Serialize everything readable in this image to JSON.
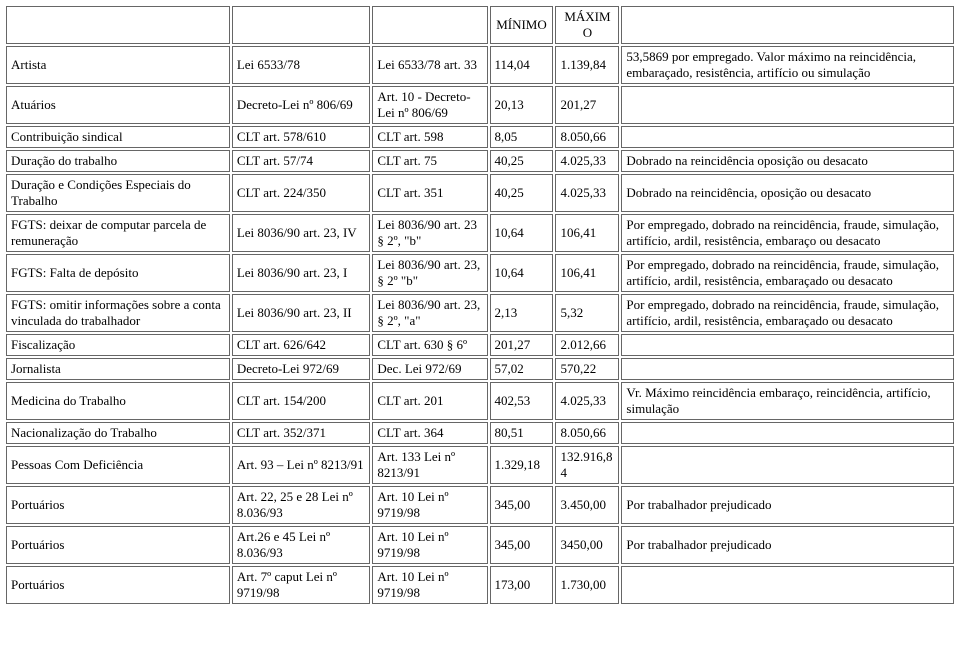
{
  "header": {
    "min": "MÍNIMO",
    "max": "MÁXIMO"
  },
  "rows": [
    {
      "c1": "Artista",
      "c2": "Lei 6533/78",
      "c3": "Lei 6533/78 art. 33",
      "c4": "114,04",
      "c5": "1.139,84",
      "c6": "53,5869 por empregado. Valor máximo na reincidência, embaraçado, resistência, artifício ou simulação"
    },
    {
      "c1": "Atuários",
      "c2": "Decreto-Lei nº 806/69",
      "c3": "Art. 10 - Decreto-Lei nº 806/69",
      "c4": "20,13",
      "c5": "201,27",
      "c6": ""
    },
    {
      "c1": "Contribuição sindical",
      "c2": "CLT art. 578/610",
      "c3": "CLT art. 598",
      "c4": "8,05",
      "c5": "8.050,66",
      "c6": ""
    },
    {
      "c1": "Duração do trabalho",
      "c2": "CLT art. 57/74",
      "c3": "CLT art. 75",
      "c4": "40,25",
      "c5": "4.025,33",
      "c6": "Dobrado na reincidência oposição ou desacato"
    },
    {
      "c1": "Duração e Condições Especiais do Trabalho",
      "c2": "CLT art. 224/350",
      "c3": "CLT art. 351",
      "c4": "40,25",
      "c5": "4.025,33",
      "c6": "Dobrado na reincidência, oposição ou desacato"
    },
    {
      "c1": "FGTS: deixar de computar parcela de remuneração",
      "c2": "Lei 8036/90 art. 23, IV",
      "c3": "Lei 8036/90 art. 23 § 2º, \"b\"",
      "c4": "10,64",
      "c5": "106,41",
      "c6": "Por empregado, dobrado na reincidência, fraude, simulação, artifício, ardil, resistência, embaraço ou desacato"
    },
    {
      "c1": "FGTS: Falta de depósito",
      "c2": "Lei 8036/90 art. 23, I",
      "c3": "Lei 8036/90 art. 23, § 2º \"b\"",
      "c4": "10,64",
      "c5": "106,41",
      "c6": "Por empregado, dobrado na reincidência, fraude, simulação, artifício, ardil, resistência, embaraçado ou desacato"
    },
    {
      "c1": "FGTS: omitir informações sobre a conta vinculada do trabalhador",
      "c2": "Lei 8036/90 art. 23, II",
      "c3": "Lei 8036/90 art. 23, § 2º, \"a\"",
      "c4": "2,13",
      "c5": "5,32",
      "c6": "Por empregado, dobrado na reincidência, fraude, simulação, artifício, ardil, resistência, embaraçado ou desacato"
    },
    {
      "c1": "Fiscalização",
      "c2": "CLT art. 626/642",
      "c3": "CLT art. 630 § 6º",
      "c4": "201,27",
      "c5": "2.012,66",
      "c6": ""
    },
    {
      "c1": "Jornalista",
      "c2": "Decreto-Lei 972/69",
      "c3": "Dec. Lei 972/69",
      "c4": "57,02",
      "c5": "570,22",
      "c6": ""
    },
    {
      "c1": "Medicina do Trabalho",
      "c2": "CLT art. 154/200",
      "c3": "CLT art. 201",
      "c4": "402,53",
      "c5": "4.025,33",
      "c6": "Vr. Máximo reincidência embaraço, reincidência, artifício, simulação"
    },
    {
      "c1": "Nacionalização do Trabalho",
      "c2": "CLT art. 352/371",
      "c3": "CLT art. 364",
      "c4": "80,51",
      "c5": "8.050,66",
      "c6": ""
    },
    {
      "c1": "Pessoas Com Deficiência",
      "c2": "Art. 93 – Lei nº 8213/91",
      "c3": "Art. 133 Lei nº 8213/91",
      "c4": "1.329,18",
      "c5": "132.916,84",
      "c6": ""
    },
    {
      "c1": "Portuários",
      "c2": "Art. 22, 25 e 28 Lei nº 8.036/93",
      "c3": "Art. 10 Lei nº 9719/98",
      "c4": "345,00",
      "c5": "3.450,00",
      "c6": "Por trabalhador prejudicado"
    },
    {
      "c1": "Portuários",
      "c2": "Art.26 e 45 Lei nº 8.036/93",
      "c3": "Art. 10 Lei nº 9719/98",
      "c4": "345,00",
      "c5": "3450,00",
      "c6": "Por trabalhador prejudicado"
    },
    {
      "c1": "Portuários",
      "c2": "Art. 7º caput Lei nº 9719/98",
      "c3": "Art. 10 Lei nº 9719/98",
      "c4": "173,00",
      "c5": "1.730,00",
      "c6": ""
    }
  ]
}
